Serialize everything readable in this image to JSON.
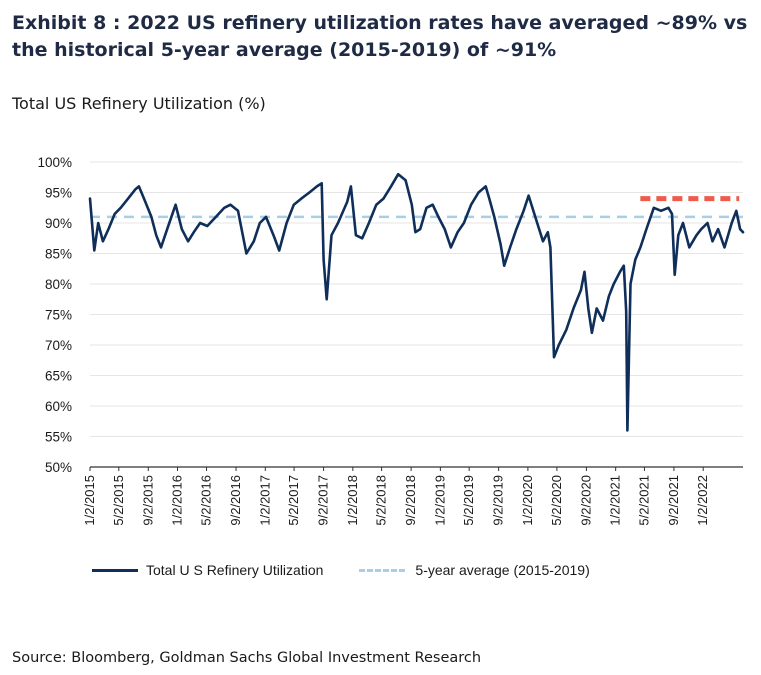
{
  "header": {
    "title": "Exhibit 8 : 2022 US refinery utilization rates have averaged ~89% vs the historical 5-year average (2015-2019) of ~91%",
    "subtitle": "Total US Refinery Utilization (%)"
  },
  "footer": {
    "source": "Source: Bloomberg, Goldman Sachs Global Investment Research"
  },
  "colors": {
    "series_line": "#0f2f5a",
    "average_line": "#a9cfe8",
    "highlight": "#f05a4a",
    "grid": "#e6e6e6"
  },
  "chart_data": {
    "type": "line",
    "title": "Total US Refinery Utilization (%)",
    "ylim": [
      50,
      100
    ],
    "y_ticks": [
      "100%",
      "95%",
      "90%",
      "85%",
      "80%",
      "75%",
      "70%",
      "65%",
      "60%",
      "55%",
      "50%"
    ],
    "x_range": [
      "2015-01-02",
      "2022-06-17"
    ],
    "x_tick_labels": [
      "1/2/2015",
      "5/2/2015",
      "9/2/2015",
      "1/2/2016",
      "5/2/2016",
      "9/2/2016",
      "1/2/2017",
      "5/2/2017",
      "9/2/2017",
      "1/2/2018",
      "5/2/2018",
      "9/2/2018",
      "1/2/2019",
      "5/2/2019",
      "9/2/2019",
      "1/2/2020",
      "5/2/2020",
      "9/2/2020",
      "1/2/2021",
      "5/2/2021",
      "9/2/2021",
      "1/2/2022"
    ],
    "grid": "horizontal",
    "legend_position": "bottom",
    "series": [
      {
        "name": "Total U S Refinery Utilization",
        "x": [
          "2015-01-02",
          "2015-01-20",
          "2015-02-05",
          "2015-02-25",
          "2015-03-20",
          "2015-04-15",
          "2015-05-10",
          "2015-06-10",
          "2015-07-10",
          "2015-07-25",
          "2015-08-15",
          "2015-09-15",
          "2015-10-05",
          "2015-10-25",
          "2015-11-20",
          "2015-12-25",
          "2016-01-20",
          "2016-02-15",
          "2016-03-10",
          "2016-04-05",
          "2016-05-05",
          "2016-06-10",
          "2016-07-15",
          "2016-08-10",
          "2016-09-10",
          "2016-09-25",
          "2016-10-15",
          "2016-11-15",
          "2016-12-10",
          "2017-01-05",
          "2017-02-05",
          "2017-03-01",
          "2017-04-01",
          "2017-05-01",
          "2017-06-01",
          "2017-07-05",
          "2017-08-05",
          "2017-08-25",
          "2017-09-02",
          "2017-09-15",
          "2017-10-05",
          "2017-11-01",
          "2017-12-10",
          "2017-12-25",
          "2018-01-15",
          "2018-02-10",
          "2018-03-10",
          "2018-04-10",
          "2018-05-10",
          "2018-06-10",
          "2018-07-10",
          "2018-08-10",
          "2018-09-05",
          "2018-09-20",
          "2018-10-10",
          "2018-11-05",
          "2018-12-01",
          "2018-12-25",
          "2019-01-20",
          "2019-02-15",
          "2019-03-15",
          "2019-04-10",
          "2019-05-10",
          "2019-06-10",
          "2019-07-10",
          "2019-07-25",
          "2019-08-15",
          "2019-09-10",
          "2019-09-25",
          "2019-10-20",
          "2019-11-15",
          "2019-12-15",
          "2020-01-05",
          "2020-02-10",
          "2020-03-05",
          "2020-03-25",
          "2020-04-05",
          "2020-04-20",
          "2020-05-10",
          "2020-06-10",
          "2020-07-10",
          "2020-08-10",
          "2020-08-25",
          "2020-09-10",
          "2020-09-25",
          "2020-10-15",
          "2020-11-10",
          "2020-12-05",
          "2020-12-25",
          "2021-01-20",
          "2021-02-05",
          "2021-02-15",
          "2021-02-20",
          "2021-03-05",
          "2021-03-25",
          "2021-04-15",
          "2021-05-10",
          "2021-06-10",
          "2021-07-10",
          "2021-08-10",
          "2021-08-25",
          "2021-09-05",
          "2021-09-20",
          "2021-10-10",
          "2021-11-05",
          "2021-12-05",
          "2021-12-25",
          "2022-01-20",
          "2022-02-10",
          "2022-03-05",
          "2022-04-01",
          "2022-05-01",
          "2022-05-20",
          "2022-06-05",
          "2022-06-17"
        ],
        "values": [
          94,
          85.5,
          90,
          87,
          89,
          91.5,
          92.5,
          94,
          95.5,
          96,
          94,
          91,
          88,
          86,
          89,
          93,
          89,
          87,
          88.5,
          90,
          89.5,
          91,
          92.5,
          93,
          92,
          89,
          85,
          87,
          90,
          91,
          88,
          85.5,
          90,
          93,
          94,
          95,
          96,
          96.5,
          84,
          77.5,
          88,
          90,
          93.5,
          96,
          88,
          87.5,
          90,
          93,
          94,
          96,
          98,
          97,
          93,
          88.5,
          89,
          92.5,
          93,
          91,
          89,
          86,
          88.5,
          90,
          93,
          95,
          96,
          94,
          91,
          86.5,
          83,
          86,
          89,
          92,
          94.5,
          90,
          87,
          88.5,
          86,
          68,
          70,
          72.5,
          76,
          79,
          82,
          76,
          72,
          76,
          74,
          78,
          80,
          82,
          83,
          75.5,
          56,
          80,
          84,
          86,
          89,
          92.5,
          92,
          92.5,
          91.5,
          81.5,
          88,
          90,
          86,
          88,
          89,
          90,
          87,
          89,
          86,
          90,
          92,
          89,
          88.5
        ]
      },
      {
        "name": "5-year average (2015-2019)",
        "value": 91
      }
    ],
    "highlight": {
      "value": 94,
      "x_start": "2021-04-15",
      "x_end": "2022-06-01"
    }
  }
}
